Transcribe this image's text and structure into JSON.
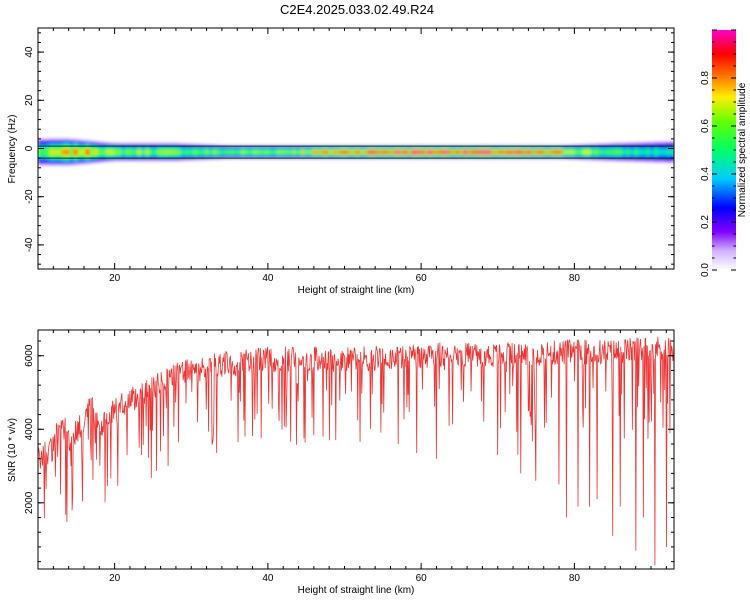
{
  "title": "C2E4.2025.033.02.49.R24",
  "colors": {
    "snr_line": "#ee3333",
    "axes": "#000000"
  },
  "chart_data": [
    {
      "type": "heatmap",
      "title": "",
      "xlabel": "Height of straight line (km)",
      "ylabel": "Frequency (Hz)",
      "xlim": [
        10,
        93
      ],
      "ylim": [
        -50,
        50
      ],
      "xticks": [
        20,
        40,
        60,
        80
      ],
      "yticks": [
        40,
        20,
        0,
        -20,
        -40
      ],
      "colormap": "rainbow (white-purple-blue-cyan-green-yellow-red-magenta)",
      "colorbar": {
        "label": "Normalized spectral amplitude",
        "range": [
          0,
          1
        ],
        "ticks": [
          "0.0",
          "0.2",
          "0.4",
          "0.6",
          "0.8"
        ]
      },
      "band": {
        "center_hz": -1.5,
        "half_width_hz": 2.5,
        "points": [
          {
            "x": 10,
            "peak": 0.55,
            "width": 6
          },
          {
            "x": 14,
            "peak": 0.75,
            "width": 6
          },
          {
            "x": 17,
            "peak": 0.8,
            "width": 5
          },
          {
            "x": 20,
            "peak": 0.6,
            "width": 4
          },
          {
            "x": 24,
            "peak": 0.65,
            "width": 4
          },
          {
            "x": 28,
            "peak": 0.6,
            "width": 4
          },
          {
            "x": 35,
            "peak": 0.6,
            "width": 3
          },
          {
            "x": 42,
            "peak": 0.65,
            "width": 3
          },
          {
            "x": 50,
            "peak": 0.85,
            "width": 3
          },
          {
            "x": 60,
            "peak": 0.95,
            "width": 3
          },
          {
            "x": 70,
            "peak": 0.9,
            "width": 3
          },
          {
            "x": 78,
            "peak": 0.8,
            "width": 3
          },
          {
            "x": 85,
            "peak": 0.55,
            "width": 4
          },
          {
            "x": 93,
            "peak": 0.45,
            "width": 5
          }
        ]
      }
    },
    {
      "type": "line",
      "title": "",
      "xlabel": "Height of straight line (km)",
      "ylabel": "SNR (10 * v/v)",
      "xlim": [
        10,
        93
      ],
      "ylim": [
        200,
        6700
      ],
      "xticks": [
        20,
        40,
        60,
        80
      ],
      "yticks": [
        2000,
        4000,
        6000
      ],
      "series": [
        {
          "baseline": [
            [
              10,
              3200
            ],
            [
              12,
              3500
            ],
            [
              13,
              4300
            ],
            [
              14,
              3700
            ],
            [
              15,
              3900
            ],
            [
              16,
              4300
            ],
            [
              17,
              4700
            ],
            [
              18,
              4000
            ],
            [
              20,
              4600
            ],
            [
              22,
              4800
            ],
            [
              25,
              5100
            ],
            [
              28,
              5500
            ],
            [
              30,
              5600
            ],
            [
              35,
              5800
            ],
            [
              40,
              5900
            ],
            [
              45,
              5900
            ],
            [
              50,
              5900
            ],
            [
              55,
              5950
            ],
            [
              60,
              6000
            ],
            [
              65,
              6050
            ],
            [
              70,
              6000
            ],
            [
              75,
              6050
            ],
            [
              80,
              6100
            ],
            [
              85,
              6100
            ],
            [
              90,
              6200
            ],
            [
              93,
              6200
            ]
          ],
          "deep_dips": [
            [
              14.5,
              2200
            ],
            [
              23.5,
              3300
            ],
            [
              26,
              3400
            ],
            [
              27,
              3000
            ],
            [
              37,
              3800
            ],
            [
              48,
              3700
            ],
            [
              57,
              3600
            ],
            [
              62,
              3200
            ],
            [
              70,
              3300
            ],
            [
              73,
              2800
            ],
            [
              75,
              2600
            ],
            [
              78,
              2500
            ],
            [
              79,
              1600
            ],
            [
              80.5,
              1900
            ],
            [
              82,
              1900
            ],
            [
              83,
              2100
            ],
            [
              85,
              1100
            ],
            [
              86,
              1900
            ],
            [
              88,
              700
            ],
            [
              89,
              1600
            ],
            [
              90.5,
              300
            ],
            [
              92,
              800
            ]
          ]
        }
      ]
    }
  ]
}
